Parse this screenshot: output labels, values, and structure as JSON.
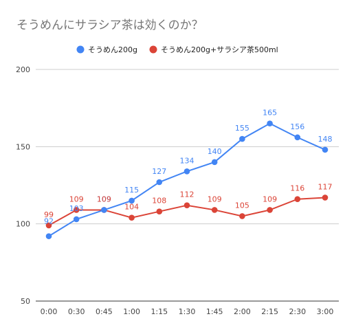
{
  "chart_data": {
    "type": "line",
    "title": "そうめんにサラシア茶は効くのか？",
    "categories": [
      "0:00",
      "0:30",
      "0:45",
      "1:00",
      "1:15",
      "1:30",
      "1:45",
      "2:00",
      "2:15",
      "2:30",
      "3:00"
    ],
    "series": [
      {
        "name": "そうめん200g",
        "color": "#4285f4",
        "values": [
          92,
          103,
          109,
          115,
          127,
          134,
          140,
          155,
          165,
          156,
          148
        ]
      },
      {
        "name": "そうめん200g+サラシア茶500ml",
        "color": "#db4437",
        "values": [
          99,
          109,
          109,
          104,
          108,
          112,
          109,
          105,
          109,
          116,
          117
        ]
      }
    ],
    "ylim": [
      50,
      200
    ],
    "yticks": [
      "200",
      "150",
      "100",
      "50"
    ],
    "grid": true,
    "legend": "top"
  }
}
